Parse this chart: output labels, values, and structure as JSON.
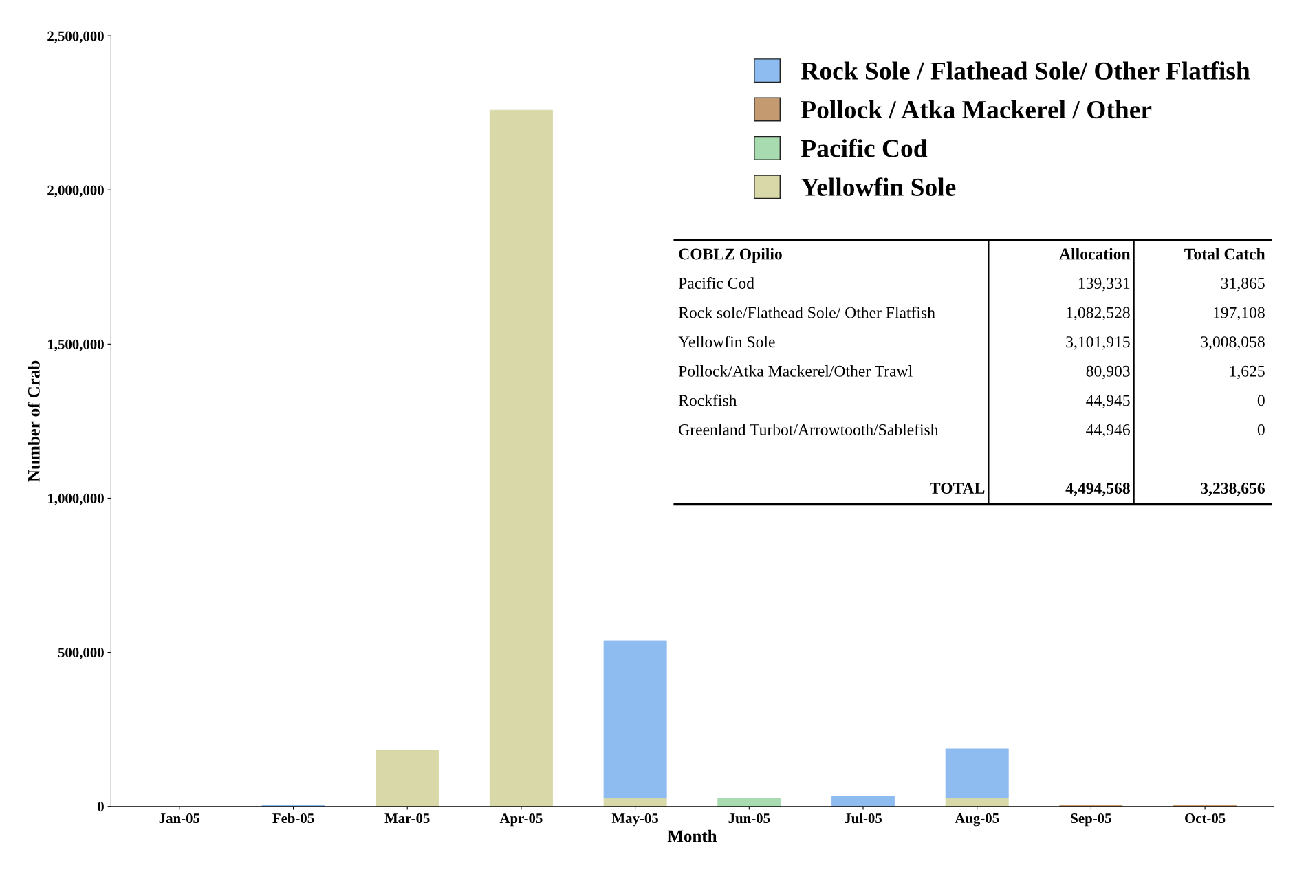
{
  "chart_data": {
    "type": "bar",
    "stacked": true,
    "xlabel": "Month",
    "ylabel": "Number of Crab",
    "categories": [
      "Jan-05",
      "Feb-05",
      "Mar-05",
      "Apr-05",
      "May-05",
      "Jun-05",
      "Jul-05",
      "Aug-05",
      "Sep-05",
      "Oct-05"
    ],
    "series": [
      {
        "name": "Yellowfin Sole",
        "color": "#d8d8a8",
        "values": [
          null,
          null,
          183000,
          2259000,
          27000,
          null,
          null,
          27000,
          null,
          null
        ]
      },
      {
        "name": "Pacific Cod",
        "color": "#a8dcb0",
        "values": [
          null,
          null,
          null,
          null,
          null,
          27000,
          null,
          null,
          null,
          null
        ]
      },
      {
        "name": "Pollock / Atka Mackerel / Other",
        "color": "#c49a70",
        "values": [
          null,
          null,
          null,
          null,
          null,
          null,
          null,
          null,
          5000,
          5000
        ]
      },
      {
        "name": "Rock Sole / Flathead Sole/ Other Flatfish",
        "color": "#8fbcf0",
        "values": [
          null,
          5000,
          null,
          null,
          510000,
          null,
          33000,
          160000,
          null,
          null
        ]
      }
    ],
    "ylim": [
      0,
      2500000
    ],
    "yticks": [
      {
        "value": 0,
        "label": "0"
      },
      {
        "value": 500000,
        "label": "500,000"
      },
      {
        "value": 1000000,
        "label": "1,000,000"
      },
      {
        "value": 1500000,
        "label": "1,500,000"
      },
      {
        "value": 2000000,
        "label": "2,000,000"
      },
      {
        "value": 2500000,
        "label": "2,500,000"
      }
    ],
    "grid": false,
    "legend": "top right",
    "annotations": [
      "COBLZ Opilio",
      "Allocation",
      "Total Catch",
      "Pacific Cod",
      "139,331",
      "31,865",
      "Rock sole/Flathead Sole/ Other Flatfish",
      "1,082,528",
      "197,108",
      "Yellowfin Sole",
      "3,101,915",
      "3,008,058",
      "Pollock/Atka Mackerel/Other Trawl",
      "80,903",
      "1,625",
      "Rockfish",
      "44,945",
      "0",
      "Greenland Turbot/Arrowtooth/Sablefish",
      "44,946",
      "0",
      "TOTAL",
      "4,494,568",
      "3,238,656"
    ]
  }
}
